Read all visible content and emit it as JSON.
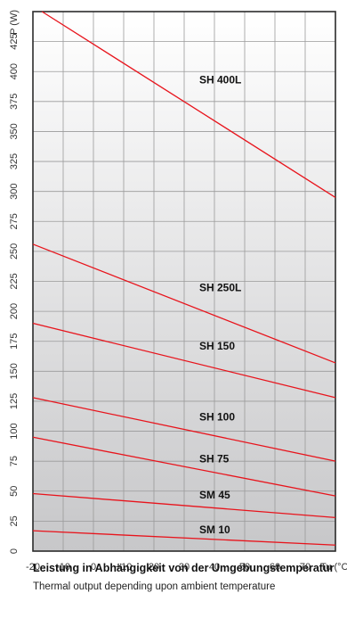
{
  "chart_data": {
    "type": "line",
    "title": "",
    "xlabel": "Tu (°C)",
    "ylabel": "P (W)",
    "xlim": [
      -20,
      80
    ],
    "ylim": [
      0,
      450
    ],
    "x_ticks": [
      -20,
      -10,
      0,
      10,
      20,
      30,
      40,
      50,
      60,
      70
    ],
    "x_tick_labels": [
      "-20",
      "-10",
      "0",
      "+10",
      "20",
      "30",
      "40",
      "50",
      "60",
      "70"
    ],
    "y_ticks": [
      0,
      25,
      50,
      75,
      100,
      125,
      150,
      175,
      200,
      225,
      250,
      275,
      300,
      325,
      350,
      375,
      400,
      425
    ],
    "y_tick_labels": [
      "0",
      "25",
      "50",
      "75",
      "100",
      "125",
      "150",
      "175",
      "200",
      "225",
      "250",
      "275",
      "300",
      "325",
      "350",
      "375",
      "400",
      "425"
    ],
    "grid": true,
    "line_color": "#e8141c",
    "series": [
      {
        "name": "SH 400L",
        "x": [
          -17,
          80
        ],
        "y": [
          450,
          295
        ],
        "label_at": [
          35,
          390
        ]
      },
      {
        "name": "SH 250L",
        "x": [
          -20,
          80
        ],
        "y": [
          256,
          157
        ],
        "label_at": [
          35,
          217
        ]
      },
      {
        "name": "SH 150",
        "x": [
          -20,
          80
        ],
        "y": [
          190,
          128
        ],
        "label_at": [
          35,
          168
        ]
      },
      {
        "name": "SH 100",
        "x": [
          -20,
          80
        ],
        "y": [
          128,
          75
        ],
        "label_at": [
          35,
          109
        ]
      },
      {
        "name": "SH 75",
        "x": [
          -20,
          80
        ],
        "y": [
          95,
          46
        ],
        "label_at": [
          35,
          74
        ]
      },
      {
        "name": "SM 45",
        "x": [
          -20,
          80
        ],
        "y": [
          48,
          28
        ],
        "label_at": [
          35,
          44
        ]
      },
      {
        "name": "SM 10",
        "x": [
          -20,
          80
        ],
        "y": [
          17,
          5
        ],
        "label_at": [
          35,
          15
        ]
      }
    ]
  },
  "caption": {
    "title": "Leistung in Abhängigkeit von der Umgebungstemperatur",
    "subtitle": "Thermal output depending upon ambient temperature"
  }
}
